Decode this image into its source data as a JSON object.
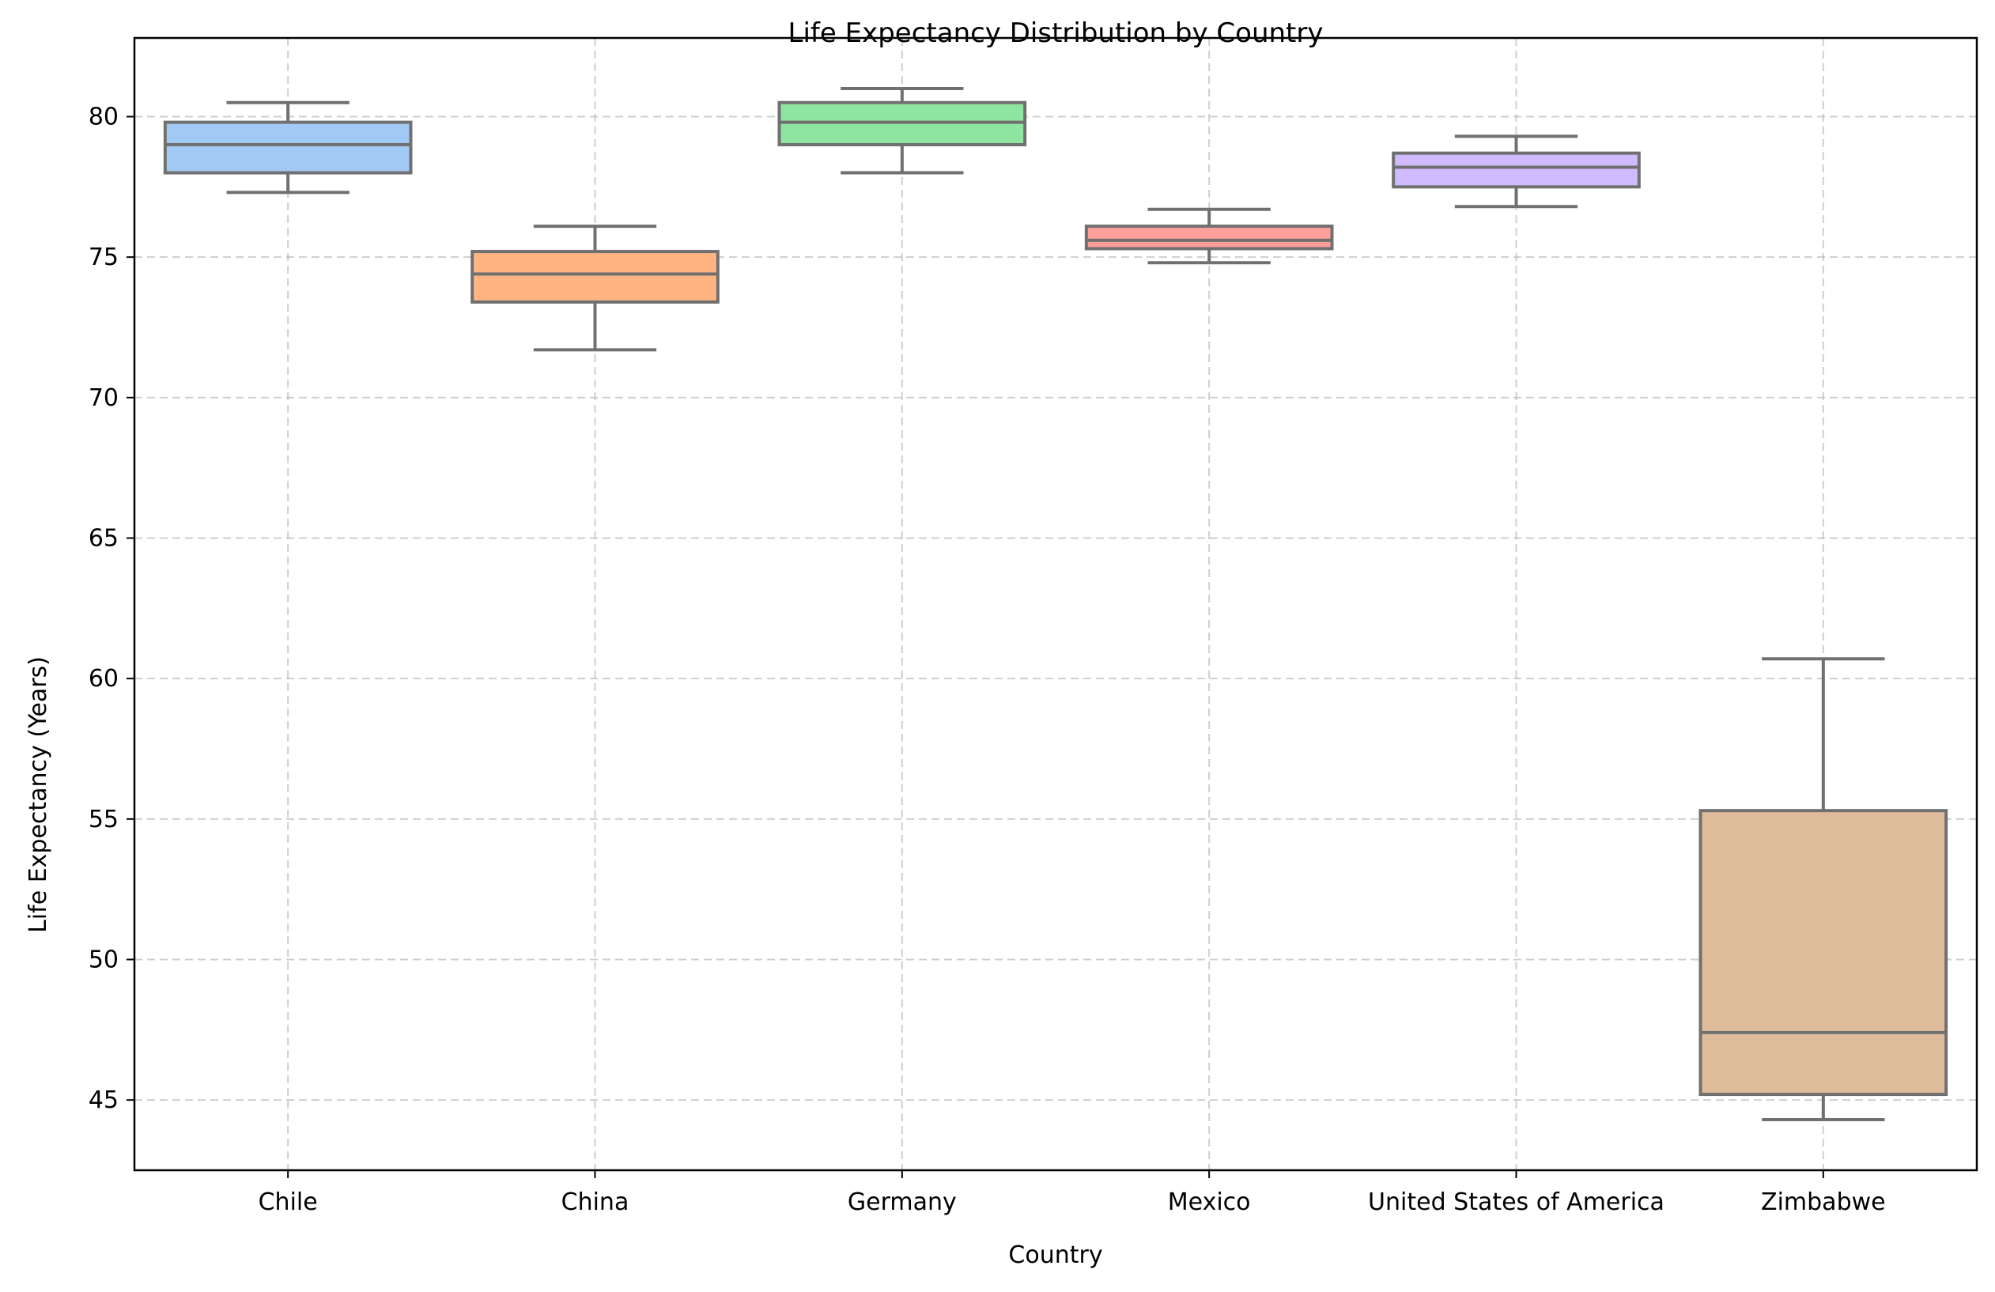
{
  "chart_data": {
    "type": "box",
    "title": "Life Expectancy Distribution by Country",
    "xlabel": "Country",
    "ylabel": "Life Expectancy (Years)",
    "ylim": [
      42.5,
      82.8
    ],
    "yticks": [
      45,
      50,
      55,
      60,
      65,
      70,
      75,
      80
    ],
    "grid": true,
    "categories": [
      "Chile",
      "China",
      "Germany",
      "Mexico",
      "United States of America",
      "Zimbabwe"
    ],
    "boxes": [
      {
        "name": "Chile",
        "whisker_low": 77.3,
        "q1": 78.0,
        "median": 79.0,
        "q3": 79.8,
        "whisker_high": 80.5,
        "color": "#a1c9f4"
      },
      {
        "name": "China",
        "whisker_low": 71.7,
        "q1": 73.4,
        "median": 74.4,
        "q3": 75.2,
        "whisker_high": 76.1,
        "color": "#ffb482"
      },
      {
        "name": "Germany",
        "whisker_low": 78.0,
        "q1": 79.0,
        "median": 79.8,
        "q3": 80.5,
        "whisker_high": 81.0,
        "color": "#8de5a1"
      },
      {
        "name": "Mexico",
        "whisker_low": 74.8,
        "q1": 75.3,
        "median": 75.6,
        "q3": 76.1,
        "whisker_high": 76.7,
        "color": "#ff9f9b"
      },
      {
        "name": "United States of America",
        "whisker_low": 76.8,
        "q1": 77.5,
        "median": 78.2,
        "q3": 78.7,
        "whisker_high": 79.3,
        "color": "#d0bbff"
      },
      {
        "name": "Zimbabwe",
        "whisker_low": 44.3,
        "q1": 45.2,
        "median": 47.4,
        "q3": 55.3,
        "whisker_high": 60.7,
        "color": "#debb9b"
      }
    ],
    "line_color": "#707070"
  }
}
